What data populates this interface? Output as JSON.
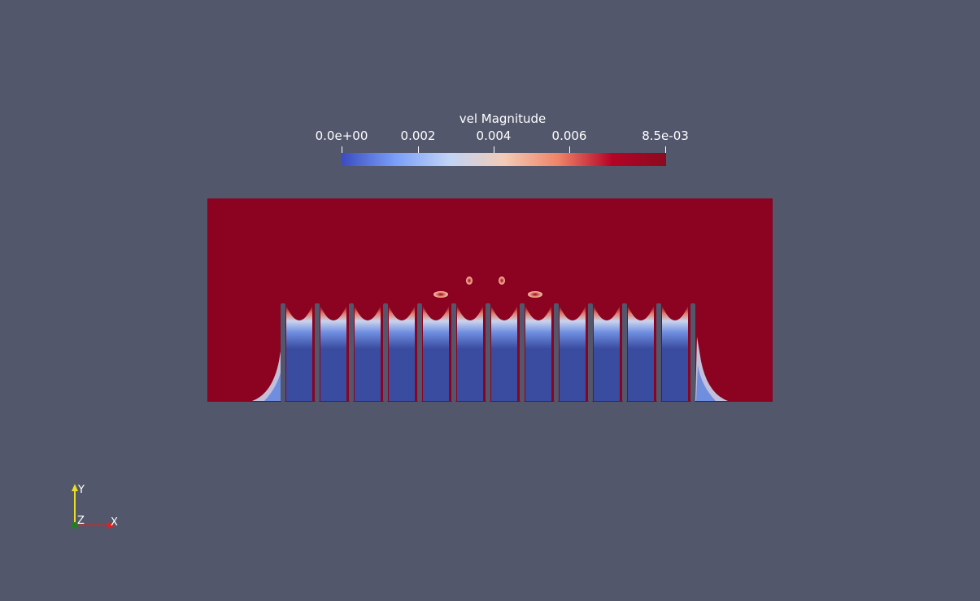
{
  "colorbar": {
    "title": "vel Magnitude",
    "ticks": [
      {
        "label": "0.0e+00",
        "value": 0.0
      },
      {
        "label": "0.002",
        "value": 0.002
      },
      {
        "label": "0.004",
        "value": 0.004
      },
      {
        "label": "0.006",
        "value": 0.006
      },
      {
        "label": "8.5e-03",
        "value": 0.0085
      }
    ],
    "range": [
      0.0,
      0.0085
    ],
    "colormap": [
      "#3b4cc0",
      "#7b9ff9",
      "#c0d4f5",
      "#f2cbb7",
      "#ee8468",
      "#b40426",
      "#8a0a20"
    ]
  },
  "colors": {
    "background": "#52576c",
    "field_high": "#8b0320",
    "field_low": "#3a4ca0",
    "fin": "#52576c"
  },
  "orientation_axes": {
    "x_label": "X",
    "y_label": "Y",
    "z_label": "Z",
    "x_color": "#e02020",
    "y_color": "#e8e020",
    "z_color": "#208020"
  }
}
